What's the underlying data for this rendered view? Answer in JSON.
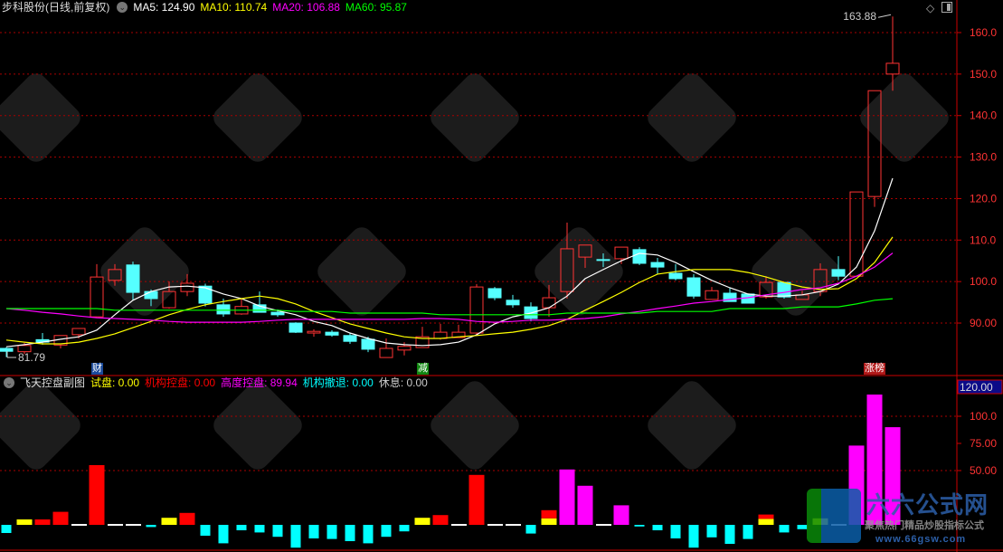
{
  "header": {
    "stock_title": "步科股份(日线,前复权)",
    "ma": [
      {
        "label": "MA5: 124.90",
        "color": "#ffffff"
      },
      {
        "label": "MA10: 110.74",
        "color": "#ffff00"
      },
      {
        "label": "MA20: 106.88",
        "color": "#ff00ff"
      },
      {
        "label": "MA60: 95.87",
        "color": "#00ff00"
      }
    ]
  },
  "sub_header": {
    "title": "飞天控盘副图",
    "items": [
      {
        "label": "试盘: 0.00",
        "color": "#ffff00"
      },
      {
        "label": "机构控盘: 0.00",
        "color": "#ff0000"
      },
      {
        "label": "高度控盘: 89.94",
        "color": "#ff00ff"
      },
      {
        "label": "机构撤退: 0.00",
        "color": "#00ffff"
      },
      {
        "label": "休息: 0.00",
        "color": "#cccccc"
      }
    ]
  },
  "price_axis": [
    "160.0",
    "150.0",
    "140.0",
    "130.0",
    "120.0",
    "110.0",
    "100.0",
    "90.00"
  ],
  "sub_axis": {
    "current": "120.00",
    "ticks": [
      "100.0",
      "75.00",
      "50.00"
    ]
  },
  "annotations": {
    "high_label": "163.88",
    "low_label": "81.79"
  },
  "tags": [
    {
      "text": "财",
      "bg": "#1a4a9a",
      "candle": 5
    },
    {
      "text": "减",
      "bg": "#118811",
      "candle": 23
    },
    {
      "text": "涨榜",
      "bg": "#b01818",
      "candle": 48
    }
  ],
  "watermark": {
    "brand": "六六公式网",
    "slogan": "聚焦热门精品炒股指标公式",
    "url": "www.66gsw.com"
  },
  "colors": {
    "up": "#ff3333",
    "down": "#55ffff",
    "grid": "#aa0000",
    "axis": "#cc0000"
  },
  "chart_data": [
    {
      "type": "candlestick",
      "ylim": [
        80,
        165
      ],
      "grid": true,
      "ohlc": [
        [
          83.9,
          84.2,
          81.79,
          83.2
        ],
        [
          83.1,
          85.2,
          82.5,
          84.6
        ],
        [
          86.0,
          87.6,
          84.8,
          85.4
        ],
        [
          84.7,
          87.0,
          83.9,
          87.0
        ],
        [
          87.2,
          88.7,
          86.3,
          88.7
        ],
        [
          91.5,
          104.2,
          91.5,
          101.1
        ],
        [
          100.3,
          104.2,
          99.0,
          102.9
        ],
        [
          104.0,
          104.8,
          95.5,
          97.4
        ],
        [
          97.6,
          98.1,
          94.1,
          95.9
        ],
        [
          93.7,
          100.0,
          93.5,
          97.6
        ],
        [
          97.6,
          101.8,
          96.5,
          99.6
        ],
        [
          98.9,
          99.5,
          94.0,
          94.8
        ],
        [
          94.4,
          95.9,
          91.5,
          92.2
        ],
        [
          92.2,
          96.0,
          92.0,
          94.0
        ],
        [
          94.4,
          97.6,
          92.6,
          92.6
        ],
        [
          92.6,
          93.3,
          91.5,
          92.0
        ],
        [
          90.0,
          90.2,
          87.6,
          87.8
        ],
        [
          87.6,
          88.5,
          86.7,
          88.0
        ],
        [
          87.8,
          88.3,
          86.7,
          87.1
        ],
        [
          87.0,
          87.6,
          85.0,
          85.6
        ],
        [
          86.1,
          86.7,
          83.0,
          83.7
        ],
        [
          81.7,
          86.3,
          81.7,
          83.9
        ],
        [
          83.5,
          85.4,
          82.2,
          84.4
        ],
        [
          84.1,
          89.1,
          84.1,
          86.7
        ],
        [
          86.3,
          89.8,
          86.0,
          87.8
        ],
        [
          86.5,
          89.6,
          86.5,
          87.8
        ],
        [
          87.6,
          99.4,
          87.2,
          98.7
        ],
        [
          98.3,
          98.7,
          95.5,
          96.1
        ],
        [
          95.5,
          96.8,
          93.7,
          94.4
        ],
        [
          93.9,
          95.0,
          90.4,
          91.1
        ],
        [
          93.7,
          99.2,
          91.5,
          96.1
        ],
        [
          97.6,
          114.2,
          95.9,
          107.9
        ],
        [
          105.9,
          108.8,
          103.3,
          108.8
        ],
        [
          105.3,
          106.8,
          103.5,
          105.1
        ],
        [
          105.5,
          108.3,
          104.2,
          108.3
        ],
        [
          107.7,
          108.3,
          104.0,
          104.4
        ],
        [
          104.6,
          105.7,
          101.8,
          103.5
        ],
        [
          102.0,
          104.2,
          100.3,
          100.7
        ],
        [
          100.9,
          101.8,
          95.9,
          96.5
        ],
        [
          95.7,
          98.7,
          95.7,
          97.8
        ],
        [
          97.2,
          98.5,
          95.2,
          95.2
        ],
        [
          97.0,
          97.0,
          94.8,
          94.8
        ],
        [
          96.3,
          101.3,
          95.9,
          99.8
        ],
        [
          99.8,
          99.8,
          95.9,
          96.3
        ],
        [
          95.7,
          97.8,
          95.7,
          96.8
        ],
        [
          97.6,
          104.4,
          96.5,
          102.9
        ],
        [
          102.9,
          106.1,
          100.3,
          101.3
        ],
        [
          101.3,
          121.6,
          101.3,
          121.6
        ],
        [
          120.5,
          146.0,
          118.0,
          146.0
        ],
        [
          150.0,
          163.88,
          146.0,
          152.6
        ]
      ],
      "series": [
        {
          "name": "MA5",
          "color": "#ffffff",
          "values": [
            84.3,
            84.8,
            85.4,
            86.1,
            86.7,
            88.3,
            92.0,
            95.5,
            97.6,
            98.7,
            98.9,
            98.5,
            97.0,
            95.9,
            94.1,
            93.0,
            92.0,
            90.4,
            89.4,
            87.6,
            86.3,
            85.2,
            84.8,
            84.6,
            84.8,
            85.4,
            87.2,
            89.8,
            91.5,
            92.4,
            93.7,
            96.5,
            100.7,
            102.9,
            105.0,
            106.8,
            106.4,
            104.6,
            102.4,
            100.3,
            98.5,
            97.0,
            96.5,
            96.5,
            96.8,
            97.6,
            99.4,
            103.5,
            112.2,
            124.9
          ]
        },
        {
          "name": "MA10",
          "color": "#ffff00",
          "values": [
            85.9,
            85.4,
            85.0,
            85.0,
            85.4,
            86.3,
            87.4,
            88.9,
            90.4,
            92.0,
            93.3,
            94.4,
            95.2,
            95.9,
            96.5,
            95.9,
            94.6,
            92.8,
            91.3,
            89.8,
            88.7,
            87.6,
            86.7,
            86.3,
            86.3,
            86.7,
            87.0,
            87.4,
            87.8,
            88.5,
            89.4,
            90.9,
            93.1,
            95.2,
            97.4,
            99.8,
            101.8,
            102.4,
            102.9,
            102.9,
            102.9,
            102.2,
            101.1,
            99.8,
            98.7,
            98.1,
            98.3,
            100.7,
            104.6,
            110.74
          ]
        },
        {
          "name": "MA20",
          "color": "#ff00ff",
          "values": [
            93.5,
            93.1,
            92.6,
            92.2,
            91.7,
            91.3,
            91.1,
            90.9,
            90.7,
            90.4,
            90.2,
            90.2,
            90.2,
            90.2,
            90.4,
            90.7,
            90.9,
            90.9,
            90.9,
            90.9,
            90.9,
            90.9,
            90.9,
            91.1,
            91.1,
            90.9,
            90.4,
            90.2,
            90.4,
            90.7,
            90.7,
            90.9,
            91.1,
            91.5,
            92.2,
            92.8,
            93.5,
            94.1,
            94.8,
            95.2,
            95.7,
            96.1,
            96.8,
            97.4,
            98.1,
            98.5,
            99.6,
            101.3,
            103.5,
            106.88
          ]
        },
        {
          "name": "MA60",
          "color": "#00ff00",
          "values": [
            93.5,
            93.5,
            93.5,
            93.5,
            93.5,
            93.5,
            93.1,
            93.1,
            93.1,
            93.1,
            93.1,
            93.1,
            93.1,
            93.1,
            93.1,
            93.1,
            92.8,
            92.8,
            92.8,
            92.4,
            92.4,
            92.4,
            92.4,
            92.4,
            92.0,
            92.0,
            92.0,
            92.0,
            92.0,
            92.0,
            92.0,
            92.4,
            92.4,
            92.4,
            92.4,
            92.4,
            92.8,
            92.8,
            92.8,
            92.8,
            93.5,
            93.5,
            93.5,
            93.5,
            93.9,
            93.9,
            93.9,
            94.6,
            95.5,
            95.87
          ]
        }
      ]
    },
    {
      "type": "bar",
      "ylim": [
        -25,
        125
      ],
      "grid": true,
      "bars": [
        [
          [
            "机构撤退",
            -7.5
          ]
        ],
        [
          [
            "试盘",
            5
          ]
        ],
        [
          [
            "机构控盘",
            5
          ]
        ],
        [
          [
            "机构控盘",
            12
          ]
        ],
        [
          [
            "休息",
            0
          ]
        ],
        [
          [
            "机构控盘",
            55
          ]
        ],
        [
          [
            "休息",
            0
          ]
        ],
        [
          [
            "休息",
            0
          ]
        ],
        [
          [
            "机构撤退",
            -2
          ]
        ],
        [
          [
            "试盘",
            6.5
          ]
        ],
        [
          [
            "机构控盘",
            11
          ]
        ],
        [
          [
            "机构撤退",
            -10
          ]
        ],
        [
          [
            "机构撤退",
            -17
          ]
        ],
        [
          [
            "机构撤退",
            -5
          ]
        ],
        [
          [
            "机构撤退",
            -7
          ]
        ],
        [
          [
            "机构撤退",
            -11
          ]
        ],
        [
          [
            "机构撤退",
            -21
          ]
        ],
        [
          [
            "机构撤退",
            -12.5
          ]
        ],
        [
          [
            "机构撤退",
            -13
          ]
        ],
        [
          [
            "机构撤退",
            -15
          ]
        ],
        [
          [
            "机构撤退",
            -17
          ]
        ],
        [
          [
            "机构撤退",
            -11
          ]
        ],
        [
          [
            "机构撤退",
            -6
          ]
        ],
        [
          [
            "试盘",
            6.5
          ]
        ],
        [
          [
            "机构控盘",
            9
          ]
        ],
        [
          [
            "休息",
            0
          ]
        ],
        [
          [
            "机构控盘",
            46
          ]
        ],
        [
          [
            "休息",
            0
          ]
        ],
        [
          [
            "休息",
            0
          ]
        ],
        [
          [
            "机构撤退",
            -8
          ]
        ],
        [
          [
            "试盘",
            6
          ],
          [
            "机构控盘",
            7.5
          ]
        ],
        [
          [
            "高度控盘",
            51
          ]
        ],
        [
          [
            "高度控盘",
            36
          ]
        ],
        [
          [
            "休息",
            0
          ]
        ],
        [
          [
            "高度控盘",
            18
          ]
        ],
        [
          [
            "机构撤退",
            -1.5
          ]
        ],
        [
          [
            "机构撤退",
            -5
          ]
        ],
        [
          [
            "机构撤退",
            -12.5
          ]
        ],
        [
          [
            "机构撤退",
            -21
          ]
        ],
        [
          [
            "机构撤退",
            -11.5
          ]
        ],
        [
          [
            "机构撤退",
            -17.5
          ]
        ],
        [
          [
            "机构撤退",
            -13
          ]
        ],
        [
          [
            "试盘",
            5.5
          ],
          [
            "机构控盘",
            4
          ]
        ],
        [
          [
            "机构撤退",
            -7
          ]
        ],
        [
          [
            "机构撤退",
            -4
          ]
        ],
        [
          [
            "试盘",
            6
          ]
        ],
        [
          [
            "休息",
            0
          ]
        ],
        [
          [
            "高度控盘",
            73
          ]
        ],
        [
          [
            "高度控盘",
            120
          ]
        ],
        [
          [
            "高度控盘",
            89.94
          ]
        ]
      ]
    }
  ]
}
